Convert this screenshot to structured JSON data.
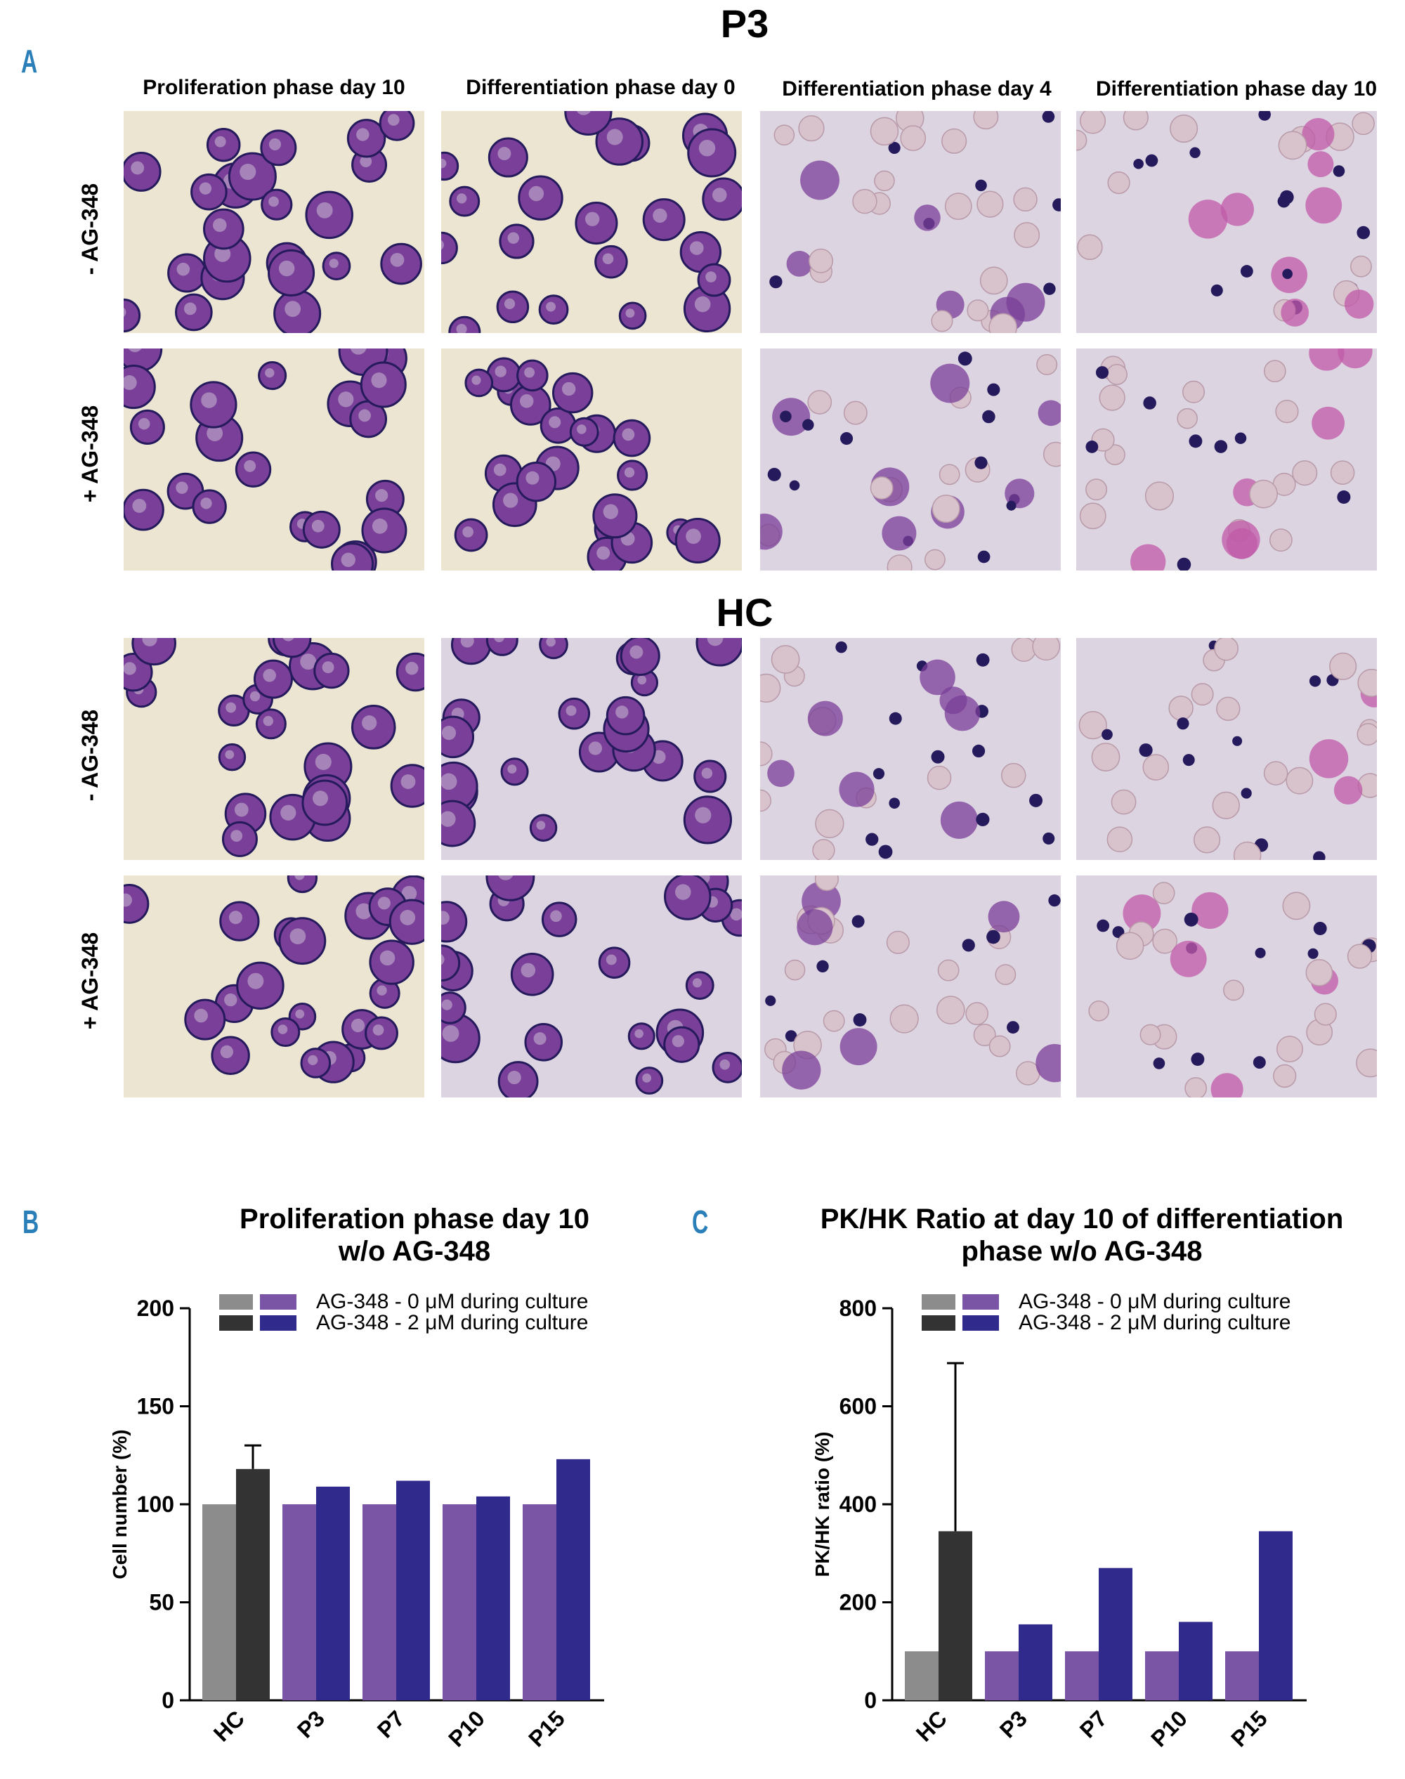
{
  "panelA": {
    "letter": "A",
    "columns": [
      "Proliferation phase day 10",
      "Differentiation phase day 0",
      "Differentiation phase day 4",
      "Differentiation phase day 10"
    ],
    "groups": [
      {
        "title": "P3",
        "rows": [
          "- AG-348",
          "+ AG-348"
        ]
      },
      {
        "title": "HC",
        "rows": [
          "- AG-348",
          "+ AG-348"
        ]
      }
    ],
    "image_tones": {
      "background_warm": "#ece5d2",
      "background_cool": "#ddd4e2",
      "cell_purple": "#7a3f98",
      "nucleus_dark": "#241a5c",
      "rbc_pink": "#d8c2cc",
      "magenta": "#c05aa8"
    }
  },
  "panelB": {
    "letter": "B",
    "title_line1": "Proliferation phase day 10",
    "title_line2": "w/o AG-348",
    "legend": {
      "row1": "AG-348 - 0 μM during culture",
      "row2": "AG-348 - 2 μM during culture"
    }
  },
  "panelC": {
    "letter": "C",
    "title_line1": "PK/HK Ratio at day 10 of differentiation",
    "title_line2": "phase w/o AG-348",
    "legend": {
      "row1": "AG-348 - 0 μM during culture",
      "row2": "AG-348 - 2 μM during culture"
    }
  },
  "colors": {
    "hc_0": "#8c8c8c",
    "hc_2": "#333333",
    "p_0": "#7a55a6",
    "p_2": "#2f2a8c"
  },
  "chart_data": [
    {
      "type": "bar",
      "title": "Proliferation phase day 10 w/o AG-348",
      "xlabel": "",
      "ylabel": "Cell number (%)",
      "categories": [
        "HC",
        "P3",
        "P7",
        "P10",
        "P15"
      ],
      "series": [
        {
          "name": "AG-348 - 0 μM during culture",
          "values": [
            100,
            100,
            100,
            100,
            100
          ]
        },
        {
          "name": "AG-348 - 2 μM during culture",
          "values": [
            118,
            109,
            112,
            104,
            123
          ],
          "error": [
            12,
            null,
            null,
            null,
            null
          ]
        }
      ],
      "ylim": [
        0,
        200
      ],
      "yticks": [
        0,
        50,
        100,
        150,
        200
      ]
    },
    {
      "type": "bar",
      "title": "PK/HK Ratio at day 10 of differentiation phase w/o AG-348",
      "xlabel": "",
      "ylabel": "PK/HK ratio (%)",
      "categories": [
        "HC",
        "P3",
        "P7",
        "P10",
        "P15"
      ],
      "series": [
        {
          "name": "AG-348 - 0 μM during culture",
          "values": [
            100,
            100,
            100,
            100,
            100
          ]
        },
        {
          "name": "AG-348 - 2 μM during culture",
          "values": [
            345,
            155,
            270,
            160,
            345
          ],
          "error": [
            343,
            null,
            null,
            null,
            null
          ]
        }
      ],
      "ylim": [
        0,
        800
      ],
      "yticks": [
        0,
        200,
        400,
        600,
        800
      ]
    }
  ]
}
